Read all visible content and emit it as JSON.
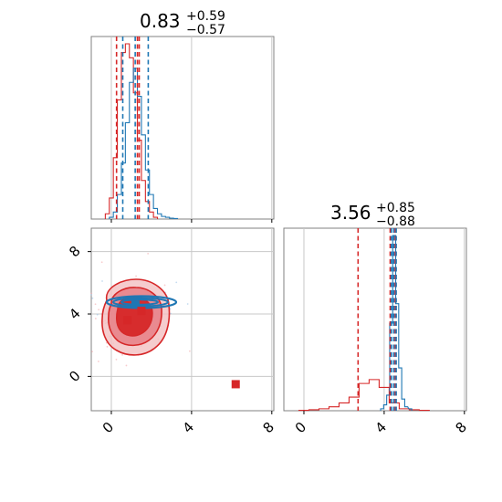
{
  "colors": {
    "red": "#d62728",
    "blue": "#1f77b4",
    "grid": "#c8c8c8",
    "axis": "#808080"
  },
  "chart_data": {
    "type": "scatter",
    "subtype": "corner-plot",
    "series": [
      {
        "name": "",
        "color": "#1f77b4"
      },
      {
        "name": "",
        "color": "#d62728"
      }
    ],
    "panels": [
      {
        "id": "hist-param1",
        "type": "histogram",
        "title": {
          "value": "0.83",
          "plus": "+0.59",
          "minus": "−0.57"
        },
        "xlim": [
          -1,
          8.1
        ],
        "quantiles": {
          "blue": [
            0.57,
            1.19,
            1.84
          ],
          "red": [
            0.26,
            1.3,
            1.39
          ]
        },
        "hist_blue": [
          [
            0,
            0.01
          ],
          [
            0.2,
            0.04
          ],
          [
            0.4,
            0.14
          ],
          [
            0.6,
            0.32
          ],
          [
            0.8,
            0.55
          ],
          [
            1.0,
            0.78
          ],
          [
            1.2,
            0.86
          ],
          [
            1.4,
            0.7
          ],
          [
            1.6,
            0.48
          ],
          [
            1.8,
            0.28
          ],
          [
            2.0,
            0.14
          ],
          [
            2.2,
            0.06
          ],
          [
            2.4,
            0.03
          ],
          [
            2.6,
            0.015
          ],
          [
            2.8,
            0.01
          ],
          [
            3.0,
            0.005
          ],
          [
            3.2,
            0.003
          ]
        ],
        "hist_red": [
          [
            -0.2,
            0.03
          ],
          [
            0,
            0.12
          ],
          [
            0.2,
            0.35
          ],
          [
            0.4,
            0.68
          ],
          [
            0.6,
            0.95
          ],
          [
            0.8,
            1.0
          ],
          [
            1.0,
            0.92
          ],
          [
            1.2,
            0.72
          ],
          [
            1.4,
            0.45
          ],
          [
            1.6,
            0.22
          ],
          [
            1.8,
            0.1
          ],
          [
            2.0,
            0.04
          ],
          [
            2.2,
            0.01
          ]
        ]
      },
      {
        "id": "hist-param2",
        "type": "histogram",
        "title": {
          "value": "3.56",
          "plus": "+0.85",
          "minus": "−0.88"
        },
        "xlim": [
          -1,
          8.1
        ],
        "xticks": [
          "0",
          "4",
          "8"
        ],
        "quantiles": {
          "blue": [
            4.36,
            4.48,
            4.6
          ],
          "red": [
            2.7,
            4.3,
            4.55
          ]
        },
        "hist_blue": [
          [
            3.9,
            0.01
          ],
          [
            4.05,
            0.03
          ],
          [
            4.2,
            0.08
          ],
          [
            4.35,
            0.45
          ],
          [
            4.5,
            0.9
          ],
          [
            4.65,
            0.55
          ],
          [
            4.8,
            0.22
          ],
          [
            4.95,
            0.06
          ],
          [
            5.1,
            0.02
          ],
          [
            5.3,
            0.01
          ]
        ],
        "hist_red": [
          [
            0,
            0.002
          ],
          [
            0.5,
            0.005
          ],
          [
            1.0,
            0.01
          ],
          [
            1.5,
            0.02
          ],
          [
            2.0,
            0.04
          ],
          [
            2.5,
            0.07
          ],
          [
            3.0,
            0.14
          ],
          [
            3.5,
            0.16
          ],
          [
            4.0,
            0.12
          ],
          [
            4.5,
            0.04
          ],
          [
            5.0,
            0.01
          ],
          [
            5.5,
            0.005
          ],
          [
            6.0,
            0.002
          ]
        ]
      },
      {
        "id": "scatter-2d",
        "type": "contour-scatter",
        "xlim": [
          -1,
          8.1
        ],
        "ylim": [
          -2.2,
          9.5
        ],
        "xticks": [
          "0",
          "4",
          "8"
        ],
        "yticks": [
          "0",
          "4",
          "8"
        ],
        "markers": [
          {
            "color": "#1f77b4",
            "shape": "square",
            "x": 1.2,
            "y": 4.6
          },
          {
            "color": "#d62728",
            "shape": "square",
            "x": 0.8,
            "y": 3.6
          },
          {
            "color": "#d62728",
            "shape": "square",
            "x": 1.5,
            "y": 4.2
          },
          {
            "color": "#d62728",
            "shape": "square",
            "x": 6.2,
            "y": -0.5
          }
        ]
      }
    ]
  }
}
